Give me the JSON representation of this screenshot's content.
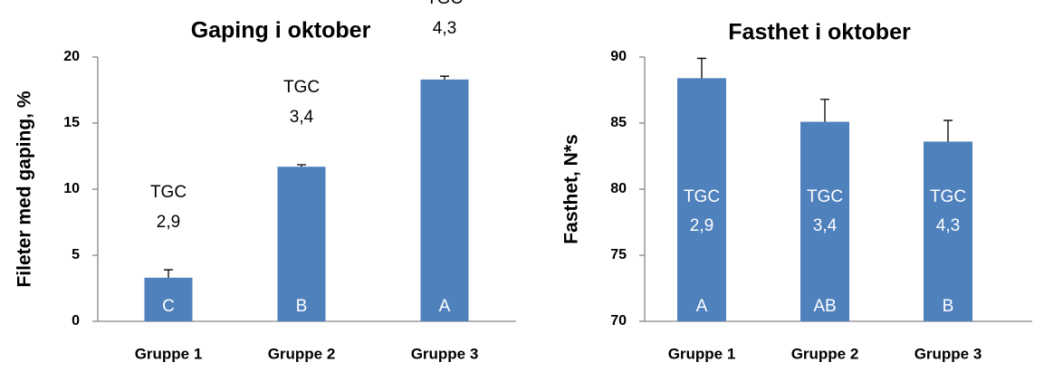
{
  "chart_data": [
    {
      "type": "bar",
      "title": "Gaping i oktober",
      "y_label": "Fileter med gaping, %",
      "categories": [
        "Gruppe 1",
        "Gruppe 2",
        "Gruppe 3"
      ],
      "values": [
        3.3,
        11.7,
        18.3
      ],
      "errors": [
        0.6,
        0.15,
        0.25
      ],
      "annotations": [
        [
          "TGC",
          "2,9"
        ],
        [
          "TGC",
          "3,4"
        ],
        [
          "TGC",
          "4,3"
        ]
      ],
      "letters": [
        "C",
        "B",
        "A"
      ],
      "color": "#4f81bd",
      "ylim": [
        0,
        20
      ],
      "yticks": [
        0,
        5,
        10,
        15,
        20
      ],
      "grid": false
    },
    {
      "type": "bar",
      "title": "Fasthet i oktober",
      "y_label": "Fasthet, N*s",
      "categories": [
        "Gruppe 1",
        "Gruppe 2",
        "Gruppe 3"
      ],
      "values": [
        88.4,
        85.1,
        83.6
      ],
      "errors": [
        1.5,
        1.7,
        1.6
      ],
      "annotations": [
        [
          "TGC",
          "2,9"
        ],
        [
          "TGC",
          "3,4"
        ],
        [
          "TGC",
          "4,3"
        ]
      ],
      "letters": [
        "A",
        "AB",
        "B"
      ],
      "color": "#4f81bd",
      "ylim": [
        70,
        90
      ],
      "yticks": [
        70,
        75,
        80,
        85,
        90
      ],
      "grid": false
    }
  ]
}
